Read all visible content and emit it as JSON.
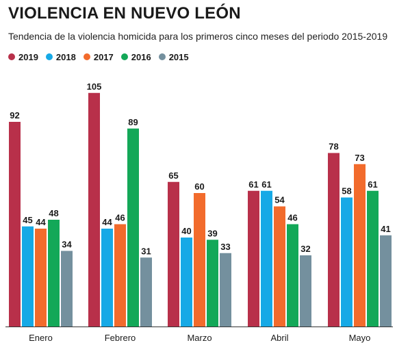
{
  "chart_data": {
    "type": "bar",
    "title": "VIOLENCIA EN NUEVO LEÓN",
    "subtitle": "Tendencia de la violencia homicida para los primeros cinco meses del periodo 2015-2019",
    "categories": [
      "Enero",
      "Febrero",
      "Marzo",
      "Abril",
      "Mayo"
    ],
    "series": [
      {
        "name": "2019",
        "color": "#b8304a",
        "values": [
          92,
          105,
          65,
          61,
          78
        ]
      },
      {
        "name": "2018",
        "color": "#16a9e6",
        "values": [
          45,
          44,
          40,
          61,
          58
        ]
      },
      {
        "name": "2017",
        "color": "#f26b2c",
        "values": [
          44,
          46,
          60,
          54,
          73
        ]
      },
      {
        "name": "2016",
        "color": "#13a858",
        "values": [
          48,
          89,
          39,
          46,
          61
        ]
      },
      {
        "name": "2015",
        "color": "#74909e",
        "values": [
          34,
          31,
          33,
          32,
          41
        ]
      }
    ],
    "ylim": [
      0,
      105
    ],
    "grid": false,
    "legend_position": "top-left",
    "xlabel": "",
    "ylabel": ""
  }
}
